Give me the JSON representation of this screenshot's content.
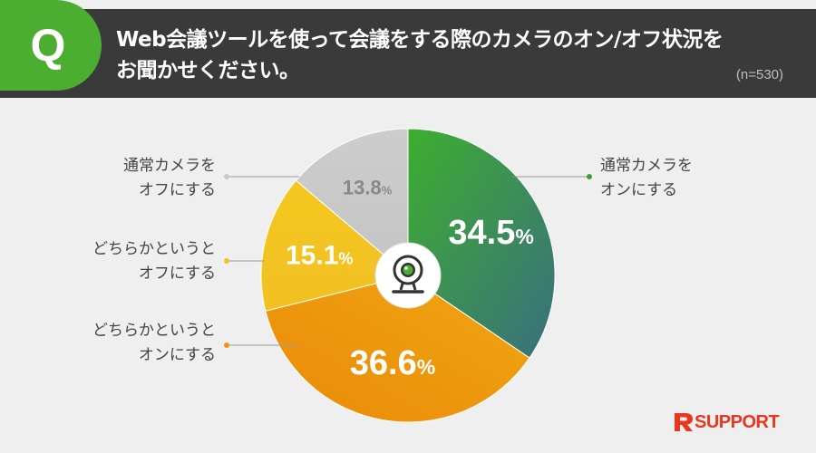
{
  "header": {
    "badge": "Q",
    "question_line1": "Web会議ツールを使って会議をする際のカメラのオン/オフ状況を",
    "question_line2": "お聞かせください。",
    "sample_size": "(n=530)"
  },
  "chart_data": {
    "type": "pie",
    "title": "Web会議ツールを使って会議をする際のカメラのオン/オフ状況をお聞かせください。",
    "n": "(n=530)",
    "start": "12 o'clock, clockwise",
    "slices": [
      {
        "label_line1": "通常カメラを",
        "label_line2": "オンにする",
        "value": 34.5,
        "display": "34.5",
        "color": "#3a9d3e"
      },
      {
        "label_line1": "どちらかというと",
        "label_line2": "オンにする",
        "value": 36.6,
        "display": "36.6",
        "color": "#eb9410"
      },
      {
        "label_line1": "どちらかというと",
        "label_line2": "オフにする",
        "value": 15.1,
        "display": "15.1",
        "color": "#f2c520"
      },
      {
        "label_line1": "通常カメラを",
        "label_line2": "オフにする",
        "value": 13.8,
        "display": "13.8",
        "color": "#c8c8c8"
      }
    ],
    "unit": "%",
    "center_icon": "webcam-icon"
  },
  "brand": {
    "name": "SUPPORT",
    "mark": "R",
    "color": "#e8361f"
  }
}
